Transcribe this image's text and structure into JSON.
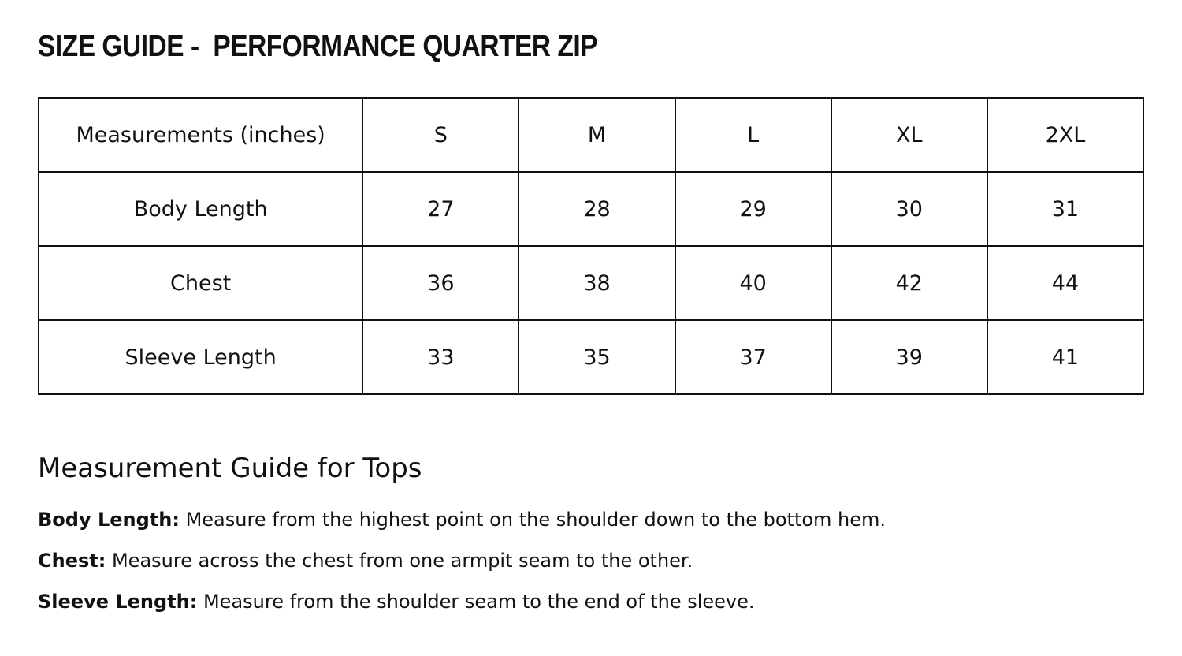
{
  "title": "SIZE GUIDE -  PERFORMANCE QUARTER ZIP",
  "table": {
    "header": [
      "Measurements (inches)",
      "S",
      "M",
      "L",
      "XL",
      "2XL"
    ],
    "rows": [
      {
        "label": "Body Length",
        "values": [
          "27",
          "28",
          "29",
          "30",
          "31"
        ]
      },
      {
        "label": "Chest",
        "values": [
          "36",
          "38",
          "40",
          "42",
          "44"
        ]
      },
      {
        "label": "Sleeve Length",
        "values": [
          "33",
          "35",
          "37",
          "39",
          "41"
        ]
      }
    ]
  },
  "guide": {
    "heading": "Measurement Guide for Tops",
    "items": [
      {
        "term": "Body Length:",
        "text": " Measure from the highest point on the shoulder down to the bottom hem."
      },
      {
        "term": "Chest:",
        "text": " Measure across the chest from one armpit seam to the other."
      },
      {
        "term": "Sleeve Length:",
        "text": " Measure from the shoulder seam to the end of the sleeve."
      }
    ]
  }
}
